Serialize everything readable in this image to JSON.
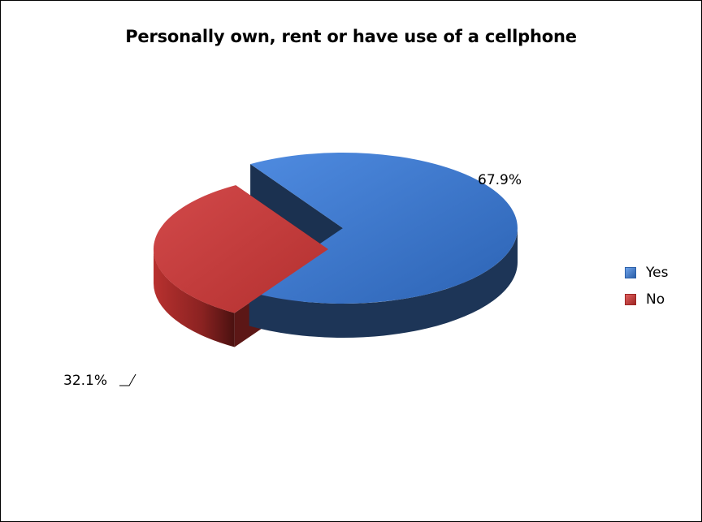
{
  "chart_data": {
    "type": "pie",
    "title": "Personally own, rent or have use of a cellphone",
    "categories": [
      "Yes",
      "No"
    ],
    "values": [
      67.9,
      32.1
    ],
    "data_labels": [
      "67.9%",
      "32.1%"
    ],
    "colors": [
      "#3a74c4",
      "#c0393a"
    ],
    "legend": {
      "placement": "right"
    },
    "style": "3d-exploded"
  }
}
